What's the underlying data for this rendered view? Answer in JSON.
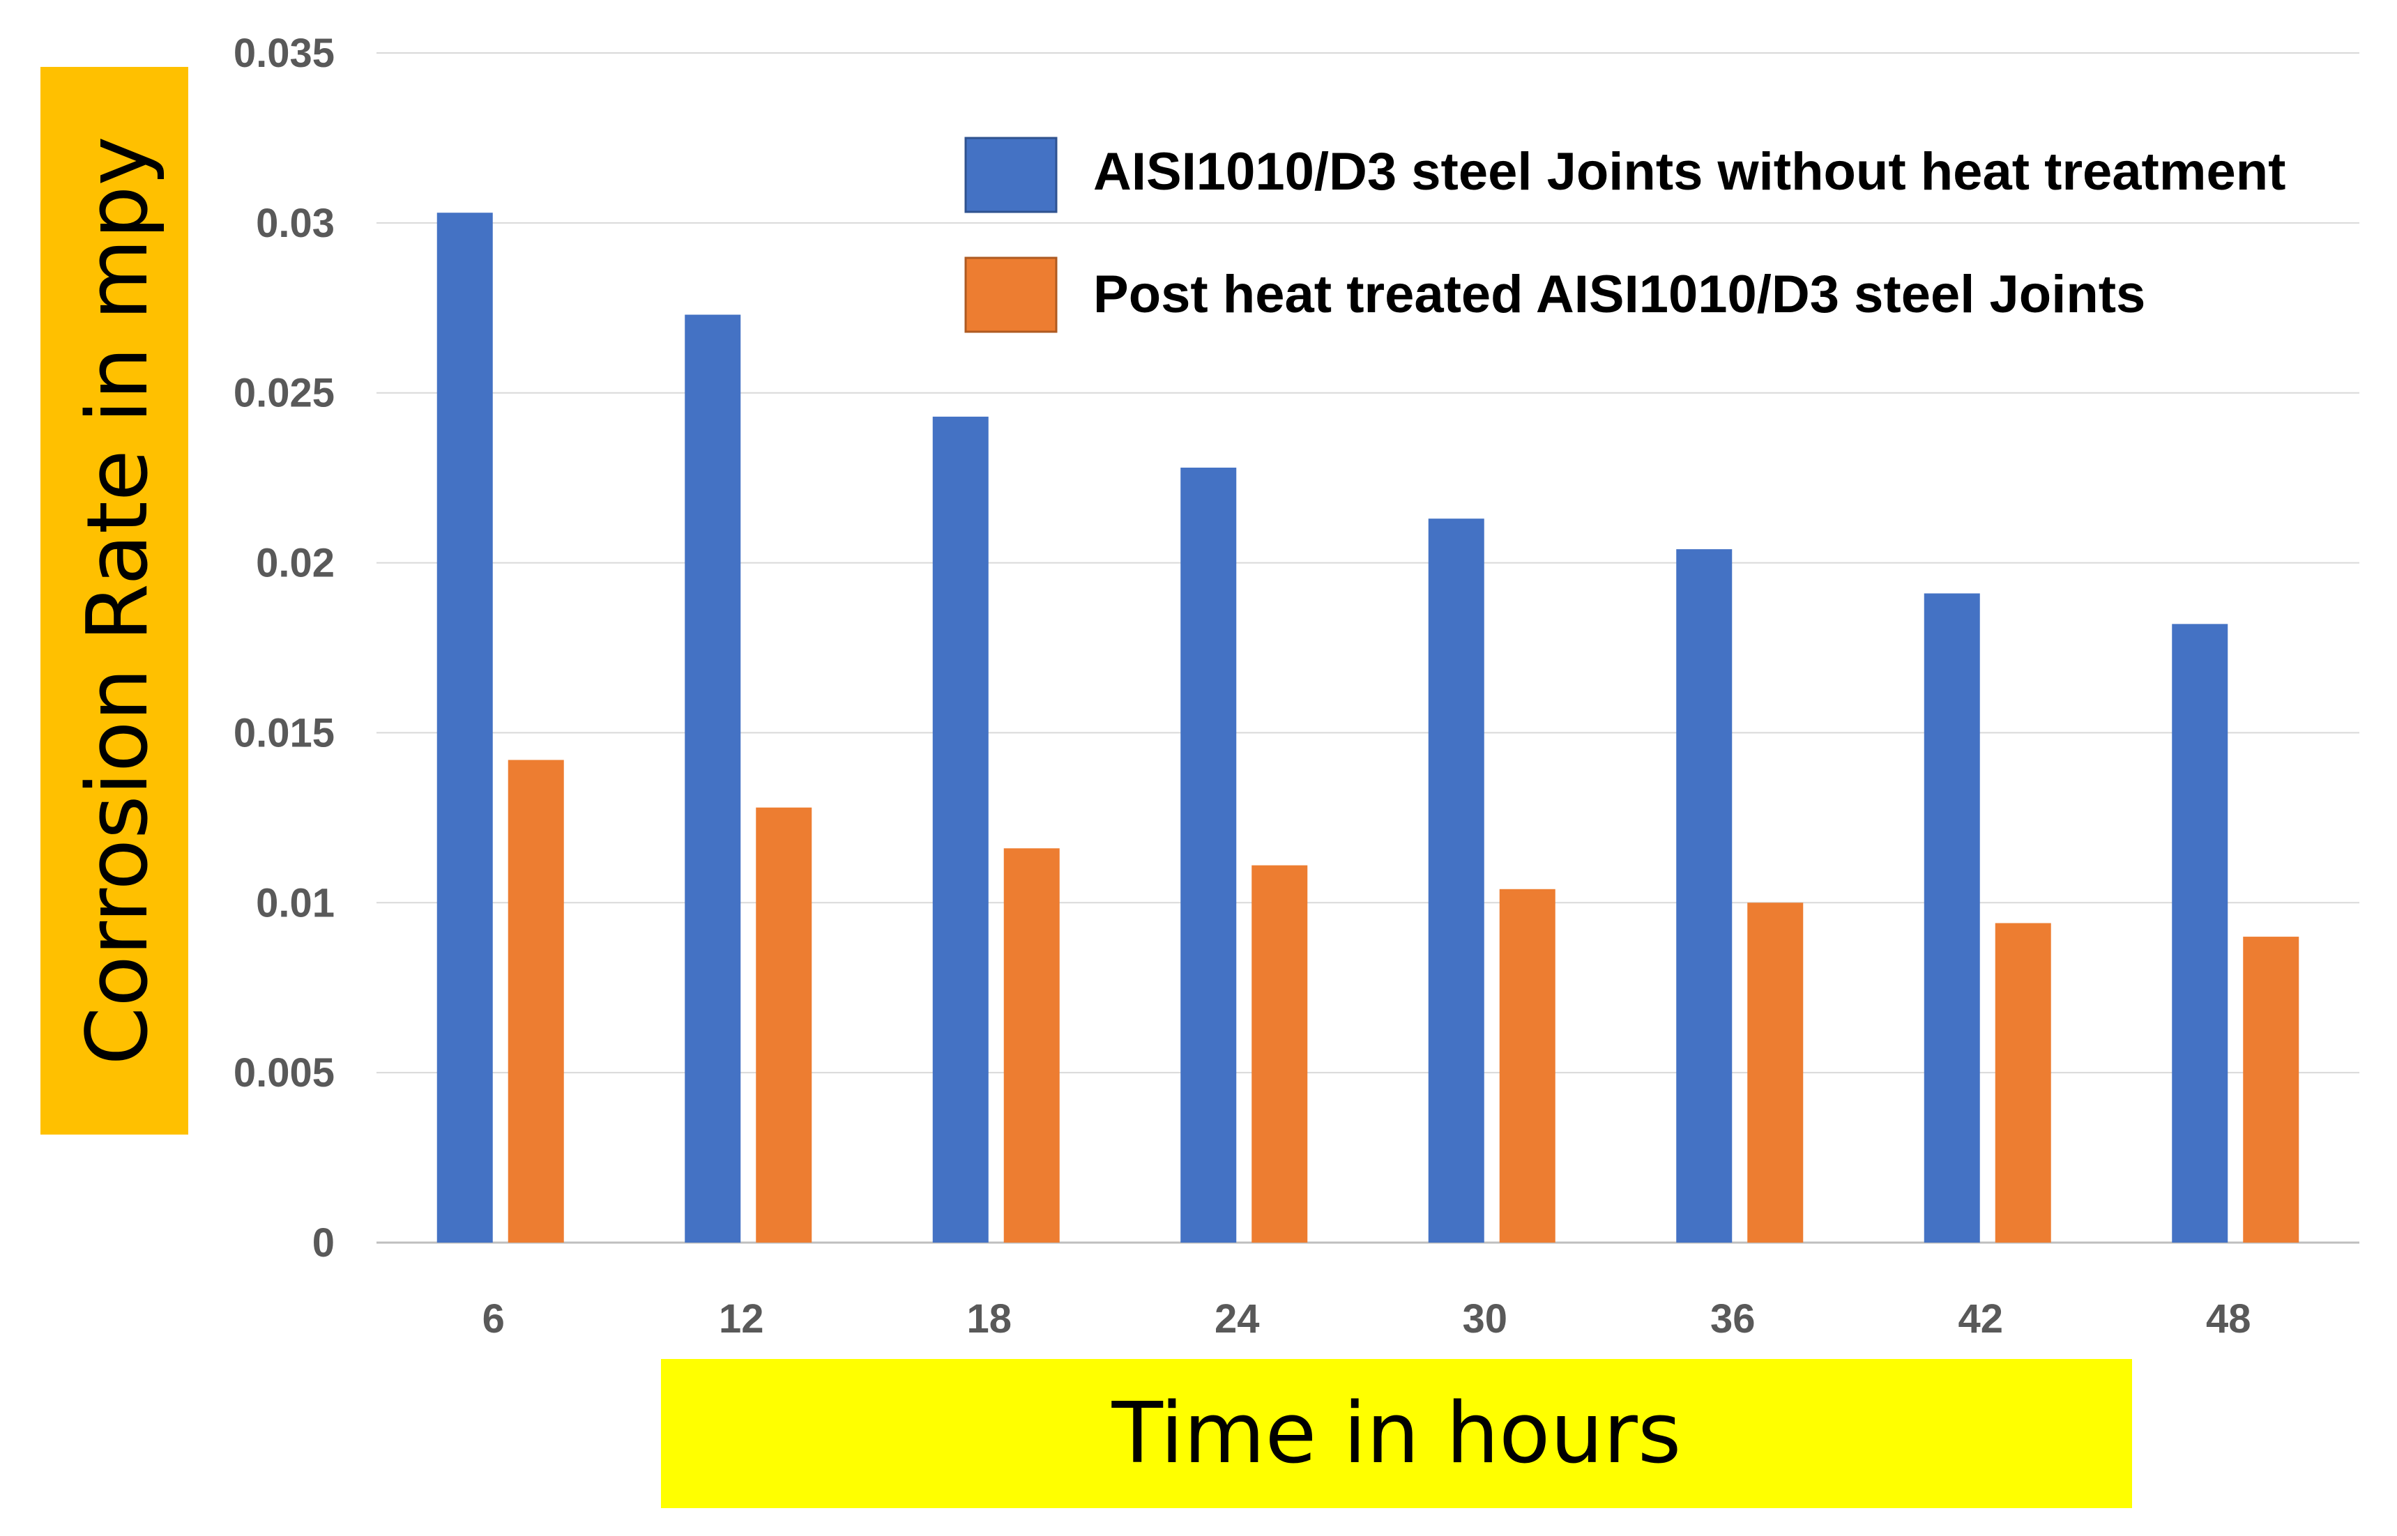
{
  "chart_data": {
    "type": "bar",
    "title": "",
    "xlabel": "Time in hours",
    "ylabel": "Corrosion Rate in mpy",
    "categories": [
      "6",
      "12",
      "18",
      "24",
      "30",
      "36",
      "42",
      "48"
    ],
    "series": [
      {
        "name": "AISI1010/D3 steel Joints without heat treatment",
        "color": "#4472C4",
        "values": [
          0.0303,
          0.0273,
          0.0243,
          0.0228,
          0.0213,
          0.0204,
          0.0191,
          0.0182
        ]
      },
      {
        "name": "Post heat treated AISI1010/D3 steel Joints",
        "color": "#ED7D31",
        "values": [
          0.0142,
          0.0128,
          0.0116,
          0.0111,
          0.0104,
          0.01,
          0.0094,
          0.009
        ]
      }
    ],
    "ylim": [
      0,
      0.035
    ],
    "yticks": [
      "0",
      "0.005",
      "0.01",
      "0.015",
      "0.02",
      "0.025",
      "0.03",
      "0.035"
    ],
    "grid": true,
    "legend_position": "top-right",
    "ylabel_background": "#FFC000",
    "xlabel_background": "#FFFF00"
  }
}
